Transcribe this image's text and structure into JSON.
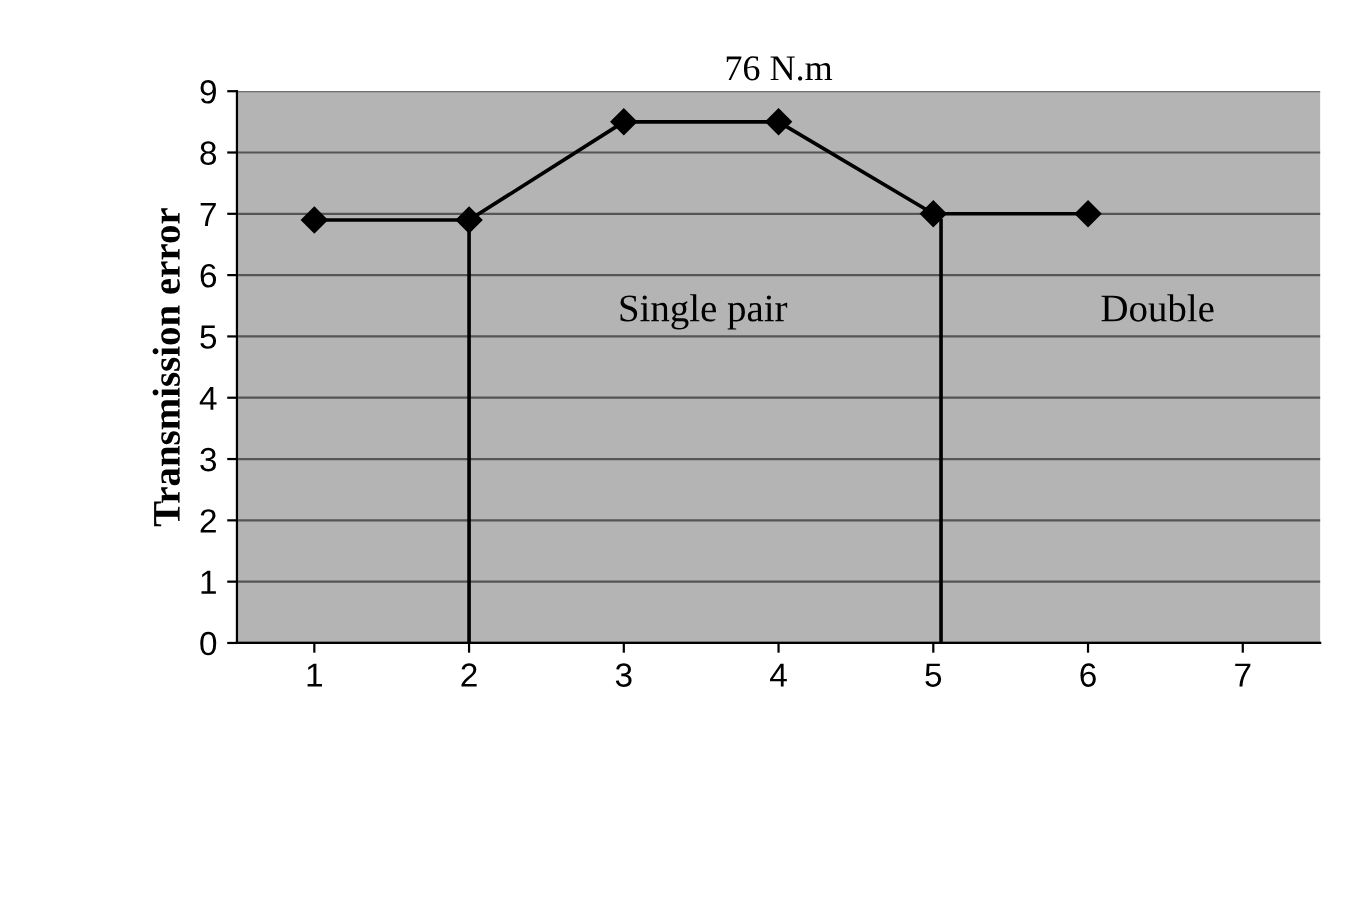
{
  "chart_data": {
    "type": "line",
    "title": "76 N.m",
    "ylabel": "Transmission error",
    "x": [
      1,
      2,
      3,
      4,
      5,
      6
    ],
    "series": [
      {
        "color": "#000000",
        "values": [
          6.9,
          6.9,
          8.5,
          8.5,
          7.0,
          7.0
        ]
      }
    ],
    "ref_lines": [
      {
        "axis": "x",
        "value": 2,
        "color": "#000000"
      },
      {
        "axis": "x",
        "value": 5.05,
        "color": "#000000"
      }
    ],
    "xlim": [
      0.5,
      7.5
    ],
    "xticks": [
      1,
      2,
      3,
      4,
      5,
      6,
      7
    ],
    "ylim": [
      0,
      9
    ],
    "yticks": [
      0,
      1,
      2,
      3,
      4,
      5,
      6,
      7,
      8,
      9
    ],
    "grid": "y",
    "marker": "diamond",
    "line_style": "solid",
    "annotations": [
      "Single pair",
      "Double"
    ]
  }
}
